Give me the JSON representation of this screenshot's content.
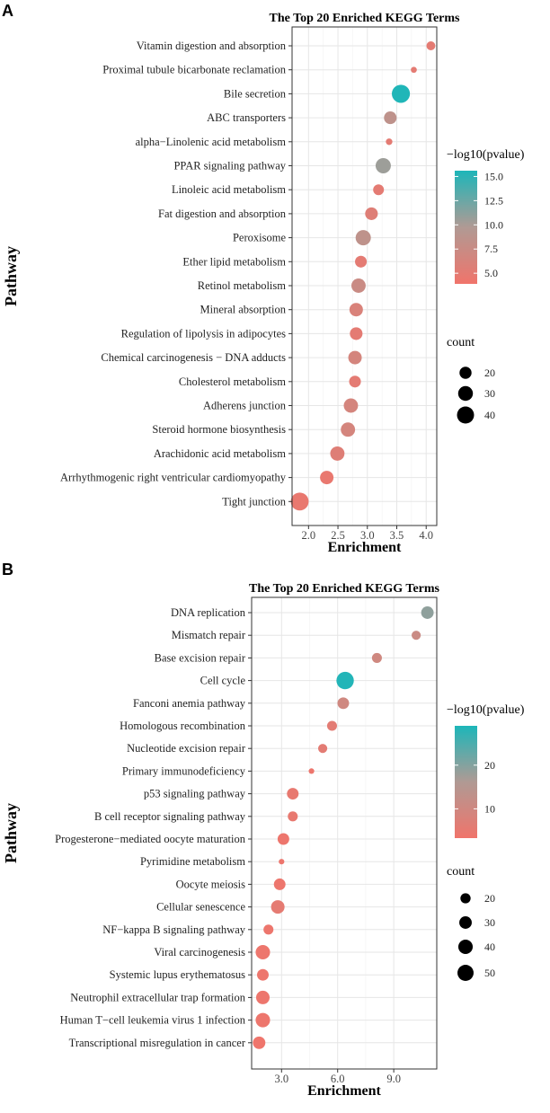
{
  "colors": {
    "low": "#F0746B",
    "mid": "#B09A94",
    "high": "#1DB6B9"
  },
  "chart_data": [
    {
      "panel": "A",
      "type": "scatter",
      "title": "The Top 20 Enriched KEGG Terms",
      "xlabel": "Enrichment",
      "ylabel": "Pathway",
      "xlim": [
        1.72,
        4.18
      ],
      "xticks": [
        "2.0",
        "2.5",
        "3.0",
        "3.5",
        "4.0"
      ],
      "xtick_values": [
        2.0,
        2.5,
        3.0,
        3.5,
        4.0
      ],
      "grid": true,
      "color_legend": {
        "title": "−log10(pvalue)",
        "range": [
          3.9,
          15.6
        ],
        "ticks": [
          "5.0",
          "7.5",
          "10.0",
          "12.5",
          "15.0"
        ],
        "tick_values": [
          5,
          7.5,
          10,
          12.5,
          15
        ]
      },
      "size_legend": {
        "title": "count",
        "ticks": [
          "20",
          "30",
          "40"
        ],
        "tick_values": [
          20,
          30,
          40
        ]
      },
      "points": [
        {
          "term": "Vitamin digestion and absorption",
          "enrichment": 4.08,
          "count": 11,
          "neglog10p": 5.0
        },
        {
          "term": "Proximal tubule bicarbonate reclamation",
          "enrichment": 3.79,
          "count": 5,
          "neglog10p": 5.0
        },
        {
          "term": "Bile secretion",
          "enrichment": 3.57,
          "count": 45,
          "neglog10p": 15.5
        },
        {
          "term": "ABC transporters",
          "enrichment": 3.39,
          "count": 22,
          "neglog10p": 8.5
        },
        {
          "term": "alpha−Linolenic acid metabolism",
          "enrichment": 3.37,
          "count": 6,
          "neglog10p": 5.0
        },
        {
          "term": "PPAR signaling pathway",
          "enrichment": 3.27,
          "count": 32,
          "neglog10p": 10.5
        },
        {
          "term": "Linoleic acid metabolism",
          "enrichment": 3.19,
          "count": 16,
          "neglog10p": 5.0
        },
        {
          "term": "Fat digestion and absorption",
          "enrichment": 3.07,
          "count": 22,
          "neglog10p": 5.5
        },
        {
          "term": "Peroxisome",
          "enrichment": 2.93,
          "count": 32,
          "neglog10p": 8.5
        },
        {
          "term": "Ether lipid metabolism",
          "enrichment": 2.89,
          "count": 19,
          "neglog10p": 5.0
        },
        {
          "term": "Retinol metabolism",
          "enrichment": 2.85,
          "count": 28,
          "neglog10p": 7.5
        },
        {
          "term": "Mineral absorption",
          "enrichment": 2.81,
          "count": 25,
          "neglog10p": 6.0
        },
        {
          "term": "Regulation of lipolysis in adipocytes",
          "enrichment": 2.81,
          "count": 22,
          "neglog10p": 5.0
        },
        {
          "term": "Chemical carcinogenesis − DNA adducts",
          "enrichment": 2.79,
          "count": 25,
          "neglog10p": 6.5
        },
        {
          "term": "Cholesterol metabolism",
          "enrichment": 2.79,
          "count": 19,
          "neglog10p": 5.0
        },
        {
          "term": "Adherens junction",
          "enrichment": 2.72,
          "count": 28,
          "neglog10p": 6.5
        },
        {
          "term": "Steroid hormone biosynthesis",
          "enrichment": 2.67,
          "count": 28,
          "neglog10p": 6.5
        },
        {
          "term": "Arachidonic acid metabolism",
          "enrichment": 2.49,
          "count": 28,
          "neglog10p": 5.5
        },
        {
          "term": "Arrhythmogenic right ventricular cardiomyopathy",
          "enrichment": 2.31,
          "count": 25,
          "neglog10p": 4.5
        },
        {
          "term": "Tight junction",
          "enrichment": 1.85,
          "count": 44,
          "neglog10p": 4.5
        }
      ]
    },
    {
      "panel": "B",
      "type": "scatter",
      "title": "The Top 20 Enriched KEGG Terms",
      "xlabel": "Enrichment",
      "ylabel": "Pathway",
      "xlim": [
        1.4,
        11.3
      ],
      "xticks": [
        "3.0",
        "6.0",
        "9.0"
      ],
      "xtick_values": [
        3.0,
        6.0,
        9.0
      ],
      "grid": true,
      "color_legend": {
        "title": "−log10(pvalue)",
        "range": [
          3.3,
          29
        ],
        "ticks": [
          "10",
          "20"
        ],
        "tick_values": [
          10,
          20
        ]
      },
      "size_legend": {
        "title": "count",
        "ticks": [
          "20",
          "30",
          "40",
          "50"
        ],
        "tick_values": [
          20,
          30,
          40,
          50
        ]
      },
      "points": [
        {
          "term": "DNA replication",
          "enrichment": 10.8,
          "count": 30,
          "neglog10p": 19
        },
        {
          "term": "Mismatch repair",
          "enrichment": 10.2,
          "count": 16,
          "neglog10p": 11
        },
        {
          "term": "Base excision repair",
          "enrichment": 8.1,
          "count": 19,
          "neglog10p": 10
        },
        {
          "term": "Cell cycle",
          "enrichment": 6.4,
          "count": 58,
          "neglog10p": 28.5
        },
        {
          "term": "Fanconi anemia pathway",
          "enrichment": 6.3,
          "count": 26,
          "neglog10p": 10
        },
        {
          "term": "Homologous recombination",
          "enrichment": 5.7,
          "count": 19,
          "neglog10p": 6
        },
        {
          "term": "Nucleotide excision repair",
          "enrichment": 5.2,
          "count": 16,
          "neglog10p": 6
        },
        {
          "term": "Primary immunodeficiency",
          "enrichment": 4.6,
          "count": 6,
          "neglog10p": 4
        },
        {
          "term": "p53 signaling pathway",
          "enrichment": 3.6,
          "count": 26,
          "neglog10p": 5
        },
        {
          "term": "B cell receptor signaling pathway",
          "enrichment": 3.6,
          "count": 19,
          "neglog10p": 5
        },
        {
          "term": "Progesterone−mediated oocyte maturation",
          "enrichment": 3.1,
          "count": 26,
          "neglog10p": 4
        },
        {
          "term": "Pyrimidine metabolism",
          "enrichment": 3.0,
          "count": 6,
          "neglog10p": 4
        },
        {
          "term": "Oocyte meiosis",
          "enrichment": 2.9,
          "count": 26,
          "neglog10p": 4
        },
        {
          "term": "Cellular senescence",
          "enrichment": 2.8,
          "count": 35,
          "neglog10p": 5.5
        },
        {
          "term": "NF−kappa B signaling pathway",
          "enrichment": 2.3,
          "count": 19,
          "neglog10p": 4
        },
        {
          "term": "Viral carcinogenesis",
          "enrichment": 2.0,
          "count": 40,
          "neglog10p": 4
        },
        {
          "term": "Systemic lupus erythematosus",
          "enrichment": 2.0,
          "count": 26,
          "neglog10p": 4
        },
        {
          "term": "Neutrophil extracellular trap formation",
          "enrichment": 2.0,
          "count": 35,
          "neglog10p": 4
        },
        {
          "term": "Human T−cell leukemia virus 1 infection",
          "enrichment": 2.0,
          "count": 40,
          "neglog10p": 4
        },
        {
          "term": "Transcriptional misregulation in cancer",
          "enrichment": 1.8,
          "count": 30,
          "neglog10p": 3.5
        }
      ]
    }
  ]
}
